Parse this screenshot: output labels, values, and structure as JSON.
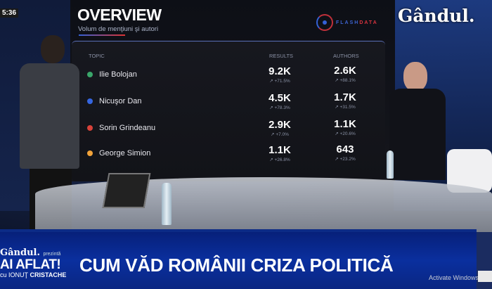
{
  "clock": "5:36",
  "channel_logo": "Gândul.",
  "screen": {
    "title": "OVERVIEW",
    "subtitle": "Volum de menţiuni şi autori",
    "provider_logo": {
      "part1": "FLASH",
      "part2": "DATA"
    },
    "headers": {
      "topic": "TOPIC",
      "results": "RESULTS",
      "authors": "AUTHORS"
    },
    "rows": [
      {
        "name": "Ilie Bolojan",
        "color": "#3aa66a",
        "results": "9.2K",
        "results_change": "+71.5%",
        "authors": "2.6K",
        "authors_change": "+88.1%"
      },
      {
        "name": "Nicuşor Dan",
        "color": "#3566e0",
        "results": "4.5K",
        "results_change": "+78.3%",
        "authors": "1.7K",
        "authors_change": "+31.5%"
      },
      {
        "name": "Sorin Grindeanu",
        "color": "#d8423a",
        "results": "2.9K",
        "results_change": "+7.0%",
        "authors": "1.1K",
        "authors_change": "+20.6%"
      },
      {
        "name": "George Simion",
        "color": "#f2a33a",
        "results": "1.1K",
        "results_change": "+26.8%",
        "authors": "643",
        "authors_change": "+23.2%"
      }
    ]
  },
  "lower_third": {
    "brand": "Gândul.",
    "presents": "prezintă",
    "show": "AI AFLAT!",
    "host_prefix": "cu IONUŢ",
    "host_last": "CRISTACHE",
    "headline": "CUM VĂD ROMÂNII CRIZA POLITICĂ"
  },
  "watermark": "Activate Windows"
}
